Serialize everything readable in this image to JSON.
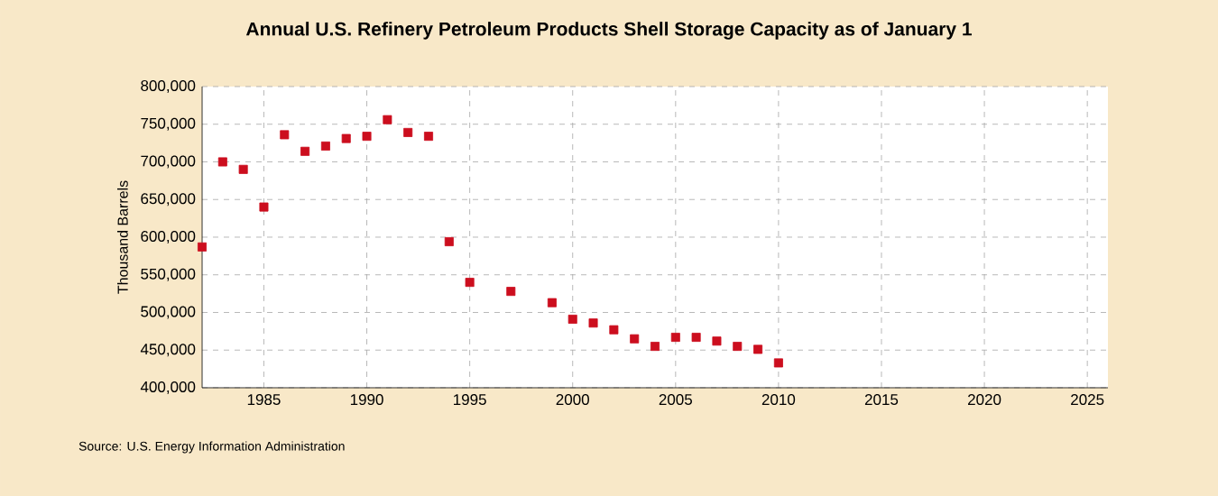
{
  "chart_data": {
    "type": "scatter",
    "title": "Annual U.S. Refinery Petroleum Products Shell Storage Capacity as of January 1",
    "ylabel": "Thousand Barrels",
    "annotations": [
      "Source: U.S. Energy Information Administration"
    ],
    "x": [
      1982,
      1983,
      1984,
      1985,
      1986,
      1987,
      1988,
      1989,
      1990,
      1991,
      1992,
      1993,
      1994,
      1995,
      1997,
      1999,
      2000,
      2001,
      2002,
      2003,
      2004,
      2005,
      2006,
      2007,
      2008,
      2009,
      2010
    ],
    "values": [
      587000,
      700000,
      690000,
      640000,
      736000,
      714000,
      721000,
      731000,
      734000,
      756000,
      739000,
      734000,
      594000,
      540000,
      528000,
      513000,
      491000,
      486000,
      477000,
      465000,
      455000,
      467000,
      467000,
      462000,
      455000,
      451000,
      433000
    ],
    "color": "#cc0e1e",
    "marker": "square",
    "grid": true,
    "xlim": [
      1982,
      2026
    ],
    "xticks": [
      1985,
      1990,
      1995,
      2000,
      2005,
      2010,
      2015,
      2020,
      2025
    ],
    "ylim": [
      400000,
      800000
    ],
    "yticks": [
      {
        "value": 400000,
        "label": "400,000"
      },
      {
        "value": 450000,
        "label": "450,000"
      },
      {
        "value": 500000,
        "label": "500,000"
      },
      {
        "value": 550000,
        "label": "550,000"
      },
      {
        "value": 600000,
        "label": "600,000"
      },
      {
        "value": 650000,
        "label": "650,000"
      },
      {
        "value": 700000,
        "label": "700,000"
      },
      {
        "value": 750000,
        "label": "750,000"
      },
      {
        "value": 800000,
        "label": "800,000"
      }
    ]
  }
}
